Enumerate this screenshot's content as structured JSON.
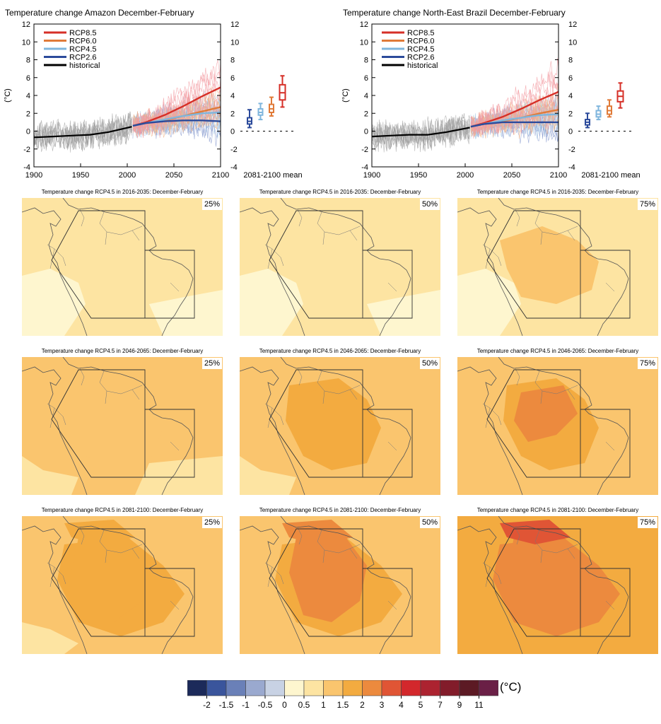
{
  "chart_data": [
    {
      "type": "line",
      "title": "Temperature change Amazon December-February",
      "ylabel": "(°C)",
      "xlim": [
        1900,
        2100
      ],
      "ylim": [
        -4,
        12
      ],
      "x_ticks": [
        1900,
        1950,
        2000,
        2050,
        2100
      ],
      "y_ticks": [
        -4,
        -2,
        0,
        2,
        4,
        6,
        8,
        10,
        12
      ],
      "legend_placement": "top-left",
      "series": [
        {
          "name": "RCP8.5",
          "color": "#d62f27",
          "x": [
            2006,
            2020,
            2040,
            2060,
            2080,
            2100
          ],
          "values": [
            0.6,
            1.0,
            1.8,
            2.8,
            3.9,
            4.9
          ]
        },
        {
          "name": "RCP6.0",
          "color": "#e07b39",
          "x": [
            2006,
            2020,
            2040,
            2060,
            2080,
            2100
          ],
          "values": [
            0.6,
            0.9,
            1.2,
            1.7,
            2.2,
            2.7
          ]
        },
        {
          "name": "RCP4.5",
          "color": "#7fb6dd",
          "x": [
            2006,
            2020,
            2040,
            2060,
            2080,
            2100
          ],
          "values": [
            0.6,
            0.9,
            1.3,
            1.7,
            2.0,
            2.1
          ]
        },
        {
          "name": "RCP2.6",
          "color": "#2b4a9b",
          "x": [
            2006,
            2020,
            2040,
            2060,
            2080,
            2100
          ],
          "values": [
            0.6,
            0.9,
            1.1,
            1.2,
            1.2,
            1.1
          ]
        },
        {
          "name": "historical",
          "color": "#000000",
          "x": [
            1900,
            1920,
            1940,
            1960,
            1980,
            2005
          ],
          "values": [
            -0.7,
            -0.6,
            -0.5,
            -0.4,
            -0.1,
            0.5
          ]
        }
      ],
      "boxplots_label": "2081-2100 mean",
      "boxplots": [
        {
          "name": "RCP2.6",
          "color": "#2b4a9b",
          "min": 0.4,
          "q1": 0.8,
          "median": 1.1,
          "q3": 1.5,
          "max": 2.4
        },
        {
          "name": "RCP4.5",
          "color": "#7fb6dd",
          "min": 1.3,
          "q1": 1.8,
          "median": 2.1,
          "q3": 2.5,
          "max": 3.1
        },
        {
          "name": "RCP6.0",
          "color": "#e07b39",
          "min": 1.7,
          "q1": 2.1,
          "median": 2.5,
          "q3": 3.0,
          "max": 3.8
        },
        {
          "name": "RCP8.5",
          "color": "#d62f27",
          "min": 2.7,
          "q1": 3.5,
          "median": 4.3,
          "q3": 5.2,
          "max": 6.2
        }
      ]
    },
    {
      "type": "line",
      "title": "Temperature change North-East Brazil December-February",
      "ylabel": "(°C)",
      "xlim": [
        1900,
        2100
      ],
      "ylim": [
        -4,
        12
      ],
      "x_ticks": [
        1900,
        1950,
        2000,
        2050,
        2100
      ],
      "y_ticks": [
        -4,
        -2,
        0,
        2,
        4,
        6,
        8,
        10,
        12
      ],
      "legend_placement": "top-left",
      "series": [
        {
          "name": "RCP8.5",
          "color": "#d62f27",
          "x": [
            2006,
            2020,
            2040,
            2060,
            2080,
            2100
          ],
          "values": [
            0.5,
            0.9,
            1.6,
            2.5,
            3.5,
            4.4
          ]
        },
        {
          "name": "RCP6.0",
          "color": "#e07b39",
          "x": [
            2006,
            2020,
            2040,
            2060,
            2080,
            2100
          ],
          "values": [
            0.5,
            0.8,
            1.1,
            1.5,
            2.0,
            2.4
          ]
        },
        {
          "name": "RCP4.5",
          "color": "#7fb6dd",
          "x": [
            2006,
            2020,
            2040,
            2060,
            2080,
            2100
          ],
          "values": [
            0.5,
            0.8,
            1.2,
            1.5,
            1.8,
            1.9
          ]
        },
        {
          "name": "RCP2.6",
          "color": "#2b4a9b",
          "x": [
            2006,
            2020,
            2040,
            2060,
            2080,
            2100
          ],
          "values": [
            0.5,
            0.8,
            1.0,
            1.0,
            1.0,
            1.0
          ]
        },
        {
          "name": "historical",
          "color": "#000000",
          "x": [
            1900,
            1920,
            1940,
            1960,
            1980,
            2005
          ],
          "values": [
            -0.6,
            -0.5,
            -0.4,
            -0.4,
            -0.1,
            0.4
          ]
        }
      ],
      "boxplots_label": "2081-2100 mean",
      "boxplots": [
        {
          "name": "RCP2.6",
          "color": "#2b4a9b",
          "min": 0.4,
          "q1": 0.7,
          "median": 1.0,
          "q3": 1.3,
          "max": 2.0
        },
        {
          "name": "RCP4.5",
          "color": "#7fb6dd",
          "min": 1.3,
          "q1": 1.6,
          "median": 1.9,
          "q3": 2.3,
          "max": 2.8
        },
        {
          "name": "RCP6.0",
          "color": "#e07b39",
          "min": 1.6,
          "q1": 1.9,
          "median": 2.3,
          "q3": 2.8,
          "max": 3.5
        },
        {
          "name": "RCP8.5",
          "color": "#d62f27",
          "min": 2.6,
          "q1": 3.3,
          "median": 3.9,
          "q3": 4.5,
          "max": 5.4
        }
      ]
    },
    {
      "type": "heatmap",
      "panels": [
        {
          "title": "Temperature change RCP4.5 in 2016-2035: December-February",
          "percentile": "25%",
          "level": 0
        },
        {
          "title": "Temperature change RCP4.5 in 2016-2035: December-February",
          "percentile": "50%",
          "level": 0
        },
        {
          "title": "Temperature change RCP4.5 in 2016-2035: December-February",
          "percentile": "75%",
          "level": 0
        },
        {
          "title": "Temperature change RCP4.5 in 2046-2065: December-February",
          "percentile": "25%",
          "level": 1
        },
        {
          "title": "Temperature change RCP4.5 in 2046-2065: December-February",
          "percentile": "50%",
          "level": 1
        },
        {
          "title": "Temperature change RCP4.5 in 2046-2065: December-February",
          "percentile": "75%",
          "level": 1
        },
        {
          "title": "Temperature change RCP4.5 in 2081-2100: December-February",
          "percentile": "25%",
          "level": 2
        },
        {
          "title": "Temperature change RCP4.5 in 2081-2100: December-February",
          "percentile": "50%",
          "level": 2
        },
        {
          "title": "Temperature change RCP4.5 in 2081-2100: December-February",
          "percentile": "75%",
          "level": 2
        }
      ],
      "colorbar": {
        "unit": "(°C)",
        "ticks": [
          "-2",
          "-1.5",
          "-1",
          "-0.5",
          "0",
          "0.5",
          "1",
          "1.5",
          "2",
          "3",
          "4",
          "5",
          "7",
          "9",
          "11"
        ],
        "colors": [
          "#1c2a5a",
          "#3a559c",
          "#6a80b8",
          "#9aa9cf",
          "#c8d2e4",
          "#fef6cf",
          "#fde4a2",
          "#fac56e",
          "#f3ab40",
          "#ec8a3e",
          "#e05535",
          "#d3282c",
          "#ac2330",
          "#821c2a",
          "#5c1a24",
          "#6a1f46"
        ]
      }
    }
  ]
}
